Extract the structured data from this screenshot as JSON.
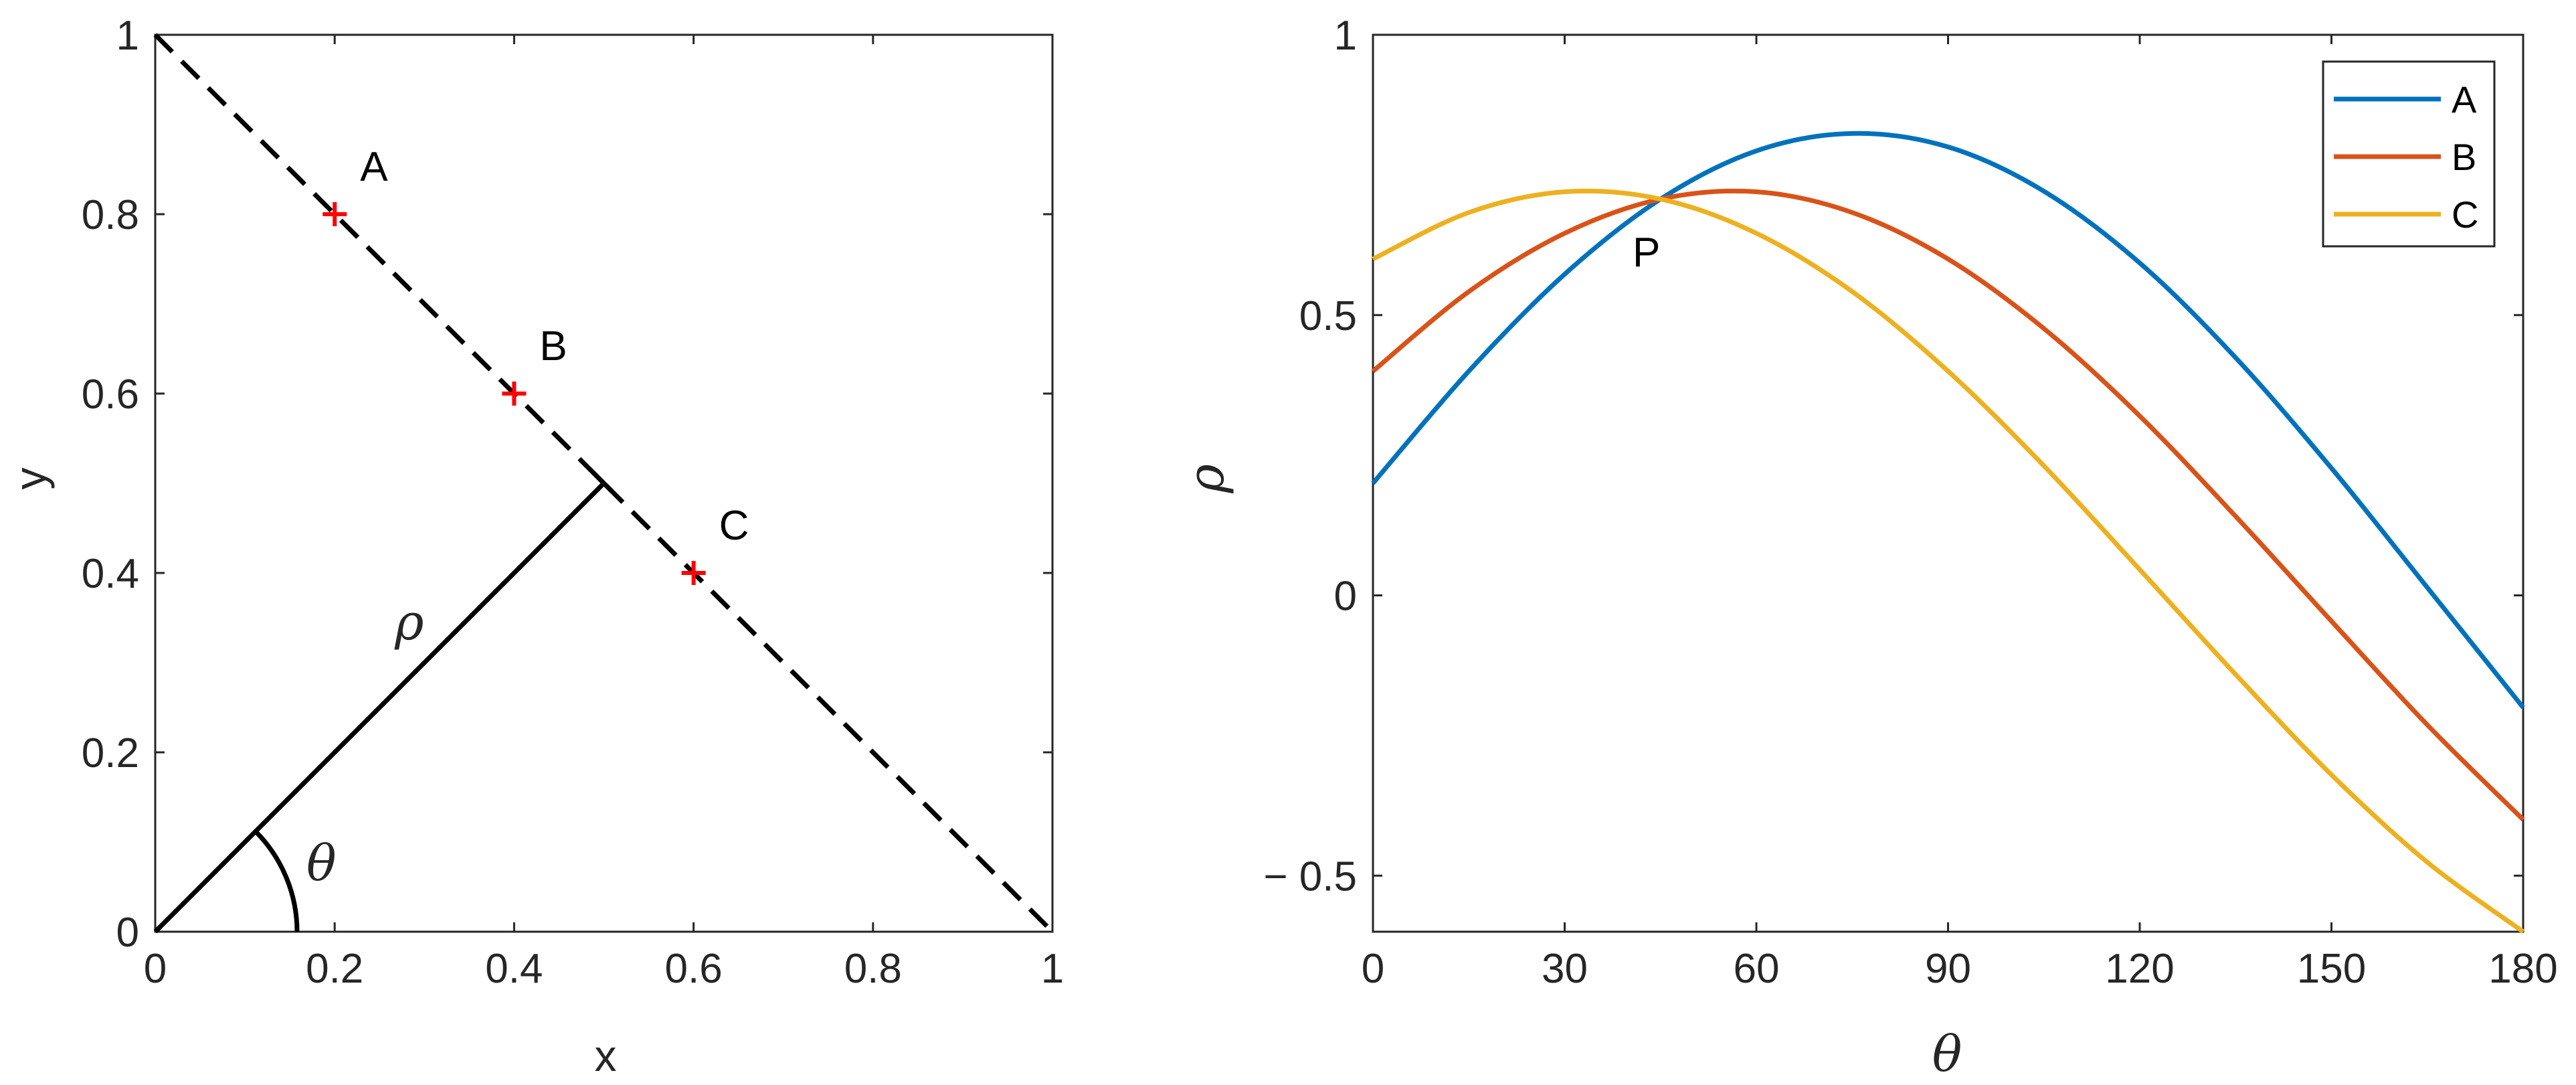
{
  "chart_data": [
    {
      "type": "scatter",
      "xlabel": "x",
      "ylabel": "y",
      "xlim": [
        0,
        1
      ],
      "ylim": [
        0,
        1
      ],
      "xticks": [
        0,
        0.2,
        0.4,
        0.6,
        0.8,
        1
      ],
      "yticks": [
        0,
        0.2,
        0.4,
        0.6,
        0.8,
        1
      ],
      "xtick_labels": [
        "0",
        "0.2",
        "0.4",
        "0.6",
        "0.8",
        "1"
      ],
      "ytick_labels": [
        "0",
        "0.2",
        "0.4",
        "0.6",
        "0.8",
        "1"
      ],
      "grid": false,
      "points": [
        {
          "label": "A",
          "x": 0.2,
          "y": 0.8
        },
        {
          "label": "B",
          "x": 0.4,
          "y": 0.6
        },
        {
          "label": "C",
          "x": 0.6,
          "y": 0.4
        }
      ],
      "marker_color": "#ff0000",
      "dashed_line": {
        "x": [
          0,
          1
        ],
        "y": [
          1,
          0
        ]
      },
      "normal_segment": {
        "x": [
          0,
          0.5
        ],
        "y": [
          0,
          0.5
        ],
        "label": "ρ"
      },
      "angle_annotation": {
        "label": "θ",
        "degrees": 45
      }
    },
    {
      "type": "line",
      "xlabel": "θ",
      "ylabel": "ρ",
      "xlim": [
        0,
        180
      ],
      "ylim": [
        -0.6,
        1
      ],
      "xticks": [
        0,
        30,
        60,
        90,
        120,
        150,
        180
      ],
      "yticks": [
        -0.5,
        0,
        0.5,
        1
      ],
      "xtick_labels": [
        "0",
        "30",
        "60",
        "90",
        "120",
        "150",
        "180"
      ],
      "ytick_labels": [
        "− 0.5",
        "0",
        "0.5",
        "1"
      ],
      "grid": false,
      "legend_position": "top-right",
      "x": [
        0,
        15,
        30,
        45,
        60,
        75,
        90,
        105,
        120,
        135,
        150,
        165,
        180
      ],
      "series": [
        {
          "name": "A",
          "color": "#0072bd",
          "values": [
            0.2,
            0.4,
            0.573,
            0.707,
            0.793,
            0.824,
            0.8,
            0.721,
            0.593,
            0.424,
            0.227,
            0.014,
            -0.2
          ]
        },
        {
          "name": "B",
          "color": "#d95319",
          "values": [
            0.4,
            0.542,
            0.646,
            0.707,
            0.72,
            0.683,
            0.6,
            0.476,
            0.32,
            0.141,
            -0.046,
            -0.231,
            -0.4
          ]
        },
        {
          "name": "C",
          "color": "#edb120",
          "values": [
            0.6,
            0.683,
            0.72,
            0.707,
            0.646,
            0.542,
            0.4,
            0.231,
            0.046,
            -0.141,
            -0.32,
            -0.476,
            -0.6
          ]
        }
      ],
      "annotations": [
        {
          "label": "P",
          "x": 45,
          "y": 0.707
        }
      ]
    }
  ]
}
